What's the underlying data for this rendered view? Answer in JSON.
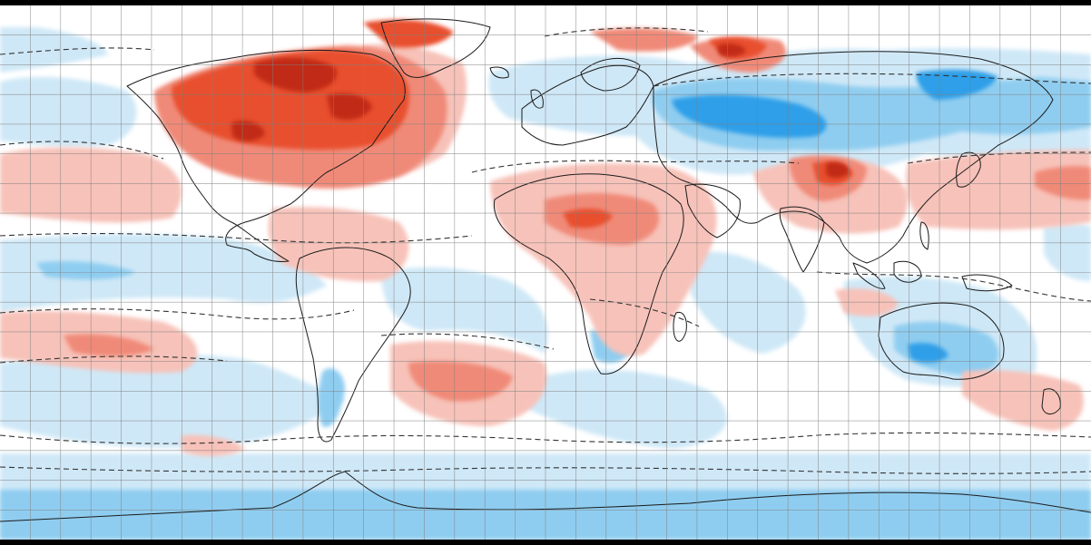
{
  "map": {
    "projection": "equirectangular",
    "graticule_step_degrees": 10,
    "colors": {
      "border": "#000000",
      "background": "#ffffff",
      "red_light": "#f7c2b9",
      "red_mid": "#f08a78",
      "red_strong": "#e8502f",
      "red_dark": "#c12b17",
      "blue_light": "#cfe8f7",
      "blue_mid": "#8fcdf0",
      "blue_strong": "#2f9fe8",
      "coast": "#1a1a1a",
      "grid": "#808080"
    },
    "legend": "none",
    "labels": "none"
  }
}
